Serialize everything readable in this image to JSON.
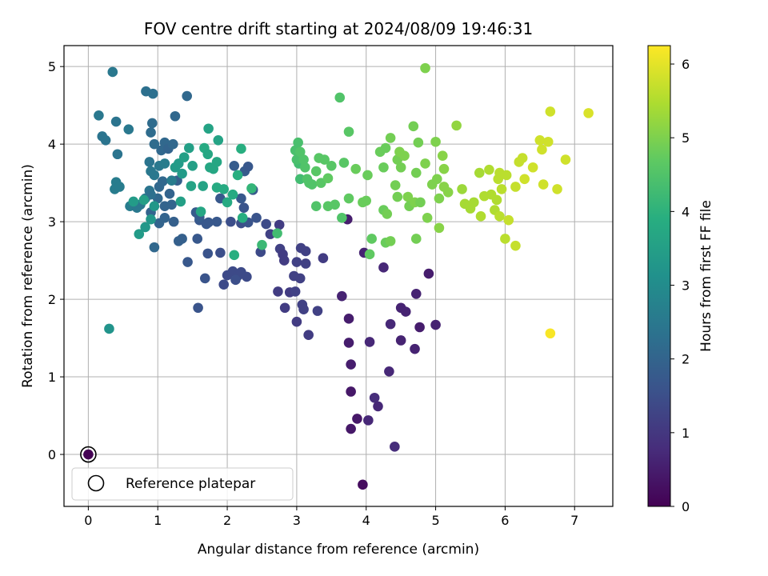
{
  "chart_data": {
    "type": "scatter",
    "title": "FOV centre drift starting at 2024/08/09 19:46:31",
    "xlabel": "Angular distance from reference (arcmin)",
    "ylabel": "Rotation from reference (arcmin)",
    "xlim": [
      -0.35,
      7.55
    ],
    "ylim": [
      -0.67,
      5.27
    ],
    "xticks": [
      "0",
      "1",
      "2",
      "3",
      "4",
      "5",
      "6",
      "7"
    ],
    "yticks": [
      "0",
      "1",
      "2",
      "3",
      "4",
      "5"
    ],
    "grid": true,
    "legend": {
      "position": "lower-left",
      "label": "Reference platepar"
    },
    "reference_point": {
      "x": 0,
      "y": 0
    },
    "colorbar": {
      "label": "Hours from first FF file",
      "range": [
        0,
        6.25
      ],
      "ticks": [
        "0",
        "1",
        "2",
        "3",
        "4",
        "5",
        "6"
      ],
      "colormap": "viridis"
    },
    "points": [
      {
        "x": 0.0,
        "y": 0.0,
        "c": 0.0
      },
      {
        "x": 3.65,
        "y": 2.04,
        "c": 0.6
      },
      {
        "x": 3.75,
        "y": 1.75,
        "c": 0.5
      },
      {
        "x": 3.75,
        "y": 1.44,
        "c": 0.5
      },
      {
        "x": 3.78,
        "y": 1.16,
        "c": 0.5
      },
      {
        "x": 3.78,
        "y": 0.81,
        "c": 0.4
      },
      {
        "x": 3.87,
        "y": 0.46,
        "c": 0.4
      },
      {
        "x": 3.78,
        "y": 0.33,
        "c": 0.4
      },
      {
        "x": 3.95,
        "y": -0.39,
        "c": 0.2
      },
      {
        "x": 4.03,
        "y": 0.44,
        "c": 0.7
      },
      {
        "x": 4.05,
        "y": 1.45,
        "c": 0.7
      },
      {
        "x": 4.12,
        "y": 0.73,
        "c": 0.8
      },
      {
        "x": 4.17,
        "y": 0.62,
        "c": 0.7
      },
      {
        "x": 4.33,
        "y": 1.07,
        "c": 0.7
      },
      {
        "x": 4.41,
        "y": 0.1,
        "c": 0.8
      },
      {
        "x": 4.35,
        "y": 1.68,
        "c": 0.7
      },
      {
        "x": 4.25,
        "y": 2.41,
        "c": 0.7
      },
      {
        "x": 3.97,
        "y": 2.6,
        "c": 0.6
      },
      {
        "x": 3.73,
        "y": 3.03,
        "c": 0.5
      },
      {
        "x": 4.5,
        "y": 1.89,
        "c": 0.6
      },
      {
        "x": 4.57,
        "y": 1.84,
        "c": 0.6
      },
      {
        "x": 4.5,
        "y": 1.47,
        "c": 0.6
      },
      {
        "x": 4.7,
        "y": 1.36,
        "c": 0.6
      },
      {
        "x": 4.72,
        "y": 2.07,
        "c": 0.6
      },
      {
        "x": 4.77,
        "y": 1.64,
        "c": 0.5
      },
      {
        "x": 4.9,
        "y": 2.33,
        "c": 0.5
      },
      {
        "x": 5.0,
        "y": 1.67,
        "c": 0.6
      },
      {
        "x": 2.75,
        "y": 2.96,
        "c": 1.1
      },
      {
        "x": 2.62,
        "y": 2.84,
        "c": 1.2
      },
      {
        "x": 2.76,
        "y": 2.65,
        "c": 1.2
      },
      {
        "x": 2.8,
        "y": 2.58,
        "c": 1.1
      },
      {
        "x": 2.82,
        "y": 2.5,
        "c": 1.1
      },
      {
        "x": 2.73,
        "y": 2.1,
        "c": 1.1
      },
      {
        "x": 2.83,
        "y": 1.89,
        "c": 1.1
      },
      {
        "x": 2.9,
        "y": 2.09,
        "c": 1.1
      },
      {
        "x": 2.96,
        "y": 2.3,
        "c": 1.2
      },
      {
        "x": 2.98,
        "y": 2.1,
        "c": 1.2
      },
      {
        "x": 3.0,
        "y": 2.48,
        "c": 1.2
      },
      {
        "x": 3.05,
        "y": 2.27,
        "c": 1.2
      },
      {
        "x": 3.0,
        "y": 1.71,
        "c": 1.1
      },
      {
        "x": 3.08,
        "y": 1.93,
        "c": 1.2
      },
      {
        "x": 3.1,
        "y": 1.87,
        "c": 1.2
      },
      {
        "x": 3.17,
        "y": 1.54,
        "c": 1.1
      },
      {
        "x": 3.06,
        "y": 2.66,
        "c": 1.2
      },
      {
        "x": 3.13,
        "y": 2.62,
        "c": 1.2
      },
      {
        "x": 3.13,
        "y": 2.46,
        "c": 1.2
      },
      {
        "x": 3.3,
        "y": 1.85,
        "c": 1.2
      },
      {
        "x": 3.38,
        "y": 2.53,
        "c": 1.1
      },
      {
        "x": 2.56,
        "y": 2.97,
        "c": 1.4
      },
      {
        "x": 2.48,
        "y": 2.61,
        "c": 1.4
      },
      {
        "x": 2.1,
        "y": 3.72,
        "c": 1.8
      },
      {
        "x": 2.25,
        "y": 3.65,
        "c": 1.8
      },
      {
        "x": 2.3,
        "y": 3.71,
        "c": 1.7
      },
      {
        "x": 2.37,
        "y": 3.41,
        "c": 1.7
      },
      {
        "x": 2.42,
        "y": 3.05,
        "c": 1.6
      },
      {
        "x": 2.2,
        "y": 3.3,
        "c": 1.7
      },
      {
        "x": 2.24,
        "y": 3.18,
        "c": 1.6
      },
      {
        "x": 2.05,
        "y": 3.0,
        "c": 1.5
      },
      {
        "x": 2.2,
        "y": 2.98,
        "c": 1.5
      },
      {
        "x": 2.3,
        "y": 2.99,
        "c": 1.6
      },
      {
        "x": 1.9,
        "y": 2.6,
        "c": 1.5
      },
      {
        "x": 2.0,
        "y": 2.31,
        "c": 1.4
      },
      {
        "x": 2.08,
        "y": 2.36,
        "c": 1.4
      },
      {
        "x": 2.15,
        "y": 2.3,
        "c": 1.4
      },
      {
        "x": 2.2,
        "y": 2.35,
        "c": 1.4
      },
      {
        "x": 2.28,
        "y": 2.29,
        "c": 1.4
      },
      {
        "x": 1.95,
        "y": 2.19,
        "c": 1.4
      },
      {
        "x": 2.12,
        "y": 2.25,
        "c": 1.5
      },
      {
        "x": 1.72,
        "y": 2.59,
        "c": 1.6
      },
      {
        "x": 1.68,
        "y": 2.27,
        "c": 1.6
      },
      {
        "x": 1.58,
        "y": 1.89,
        "c": 1.6
      },
      {
        "x": 1.57,
        "y": 2.78,
        "c": 1.7
      },
      {
        "x": 1.43,
        "y": 2.48,
        "c": 1.7
      },
      {
        "x": 1.6,
        "y": 3.02,
        "c": 1.7
      },
      {
        "x": 1.7,
        "y": 2.97,
        "c": 1.7
      },
      {
        "x": 1.73,
        "y": 2.99,
        "c": 1.7
      },
      {
        "x": 1.85,
        "y": 3.0,
        "c": 1.7
      },
      {
        "x": 1.9,
        "y": 3.3,
        "c": 1.7
      },
      {
        "x": 1.55,
        "y": 3.12,
        "c": 1.8
      },
      {
        "x": 1.6,
        "y": 3.06,
        "c": 1.8
      },
      {
        "x": 1.3,
        "y": 2.75,
        "c": 1.9
      },
      {
        "x": 1.35,
        "y": 2.78,
        "c": 1.9
      },
      {
        "x": 1.23,
        "y": 3.0,
        "c": 1.9
      },
      {
        "x": 1.28,
        "y": 3.53,
        "c": 1.9
      },
      {
        "x": 1.1,
        "y": 3.05,
        "c": 2.0
      },
      {
        "x": 1.02,
        "y": 2.98,
        "c": 2.0
      },
      {
        "x": 0.95,
        "y": 2.67,
        "c": 2.1
      },
      {
        "x": 0.9,
        "y": 3.12,
        "c": 2.0
      },
      {
        "x": 1.0,
        "y": 3.3,
        "c": 2.1
      },
      {
        "x": 1.02,
        "y": 3.45,
        "c": 2.1
      },
      {
        "x": 1.07,
        "y": 3.52,
        "c": 2.1
      },
      {
        "x": 1.1,
        "y": 3.2,
        "c": 2.0
      },
      {
        "x": 1.17,
        "y": 3.36,
        "c": 2.0
      },
      {
        "x": 1.2,
        "y": 3.22,
        "c": 2.0
      },
      {
        "x": 1.05,
        "y": 3.92,
        "c": 2.1
      },
      {
        "x": 1.1,
        "y": 4.02,
        "c": 2.1
      },
      {
        "x": 1.15,
        "y": 3.94,
        "c": 2.0
      },
      {
        "x": 1.22,
        "y": 4.0,
        "c": 2.1
      },
      {
        "x": 1.25,
        "y": 4.36,
        "c": 2.1
      },
      {
        "x": 1.42,
        "y": 4.62,
        "c": 2.1
      },
      {
        "x": 0.95,
        "y": 4.0,
        "c": 2.2
      },
      {
        "x": 0.92,
        "y": 4.27,
        "c": 2.2
      },
      {
        "x": 0.9,
        "y": 4.15,
        "c": 2.2
      },
      {
        "x": 0.93,
        "y": 4.65,
        "c": 2.3
      },
      {
        "x": 0.83,
        "y": 4.68,
        "c": 2.3
      },
      {
        "x": 0.35,
        "y": 4.93,
        "c": 2.5
      },
      {
        "x": 0.15,
        "y": 4.37,
        "c": 2.5
      },
      {
        "x": 0.4,
        "y": 4.29,
        "c": 2.4
      },
      {
        "x": 0.25,
        "y": 4.05,
        "c": 2.4
      },
      {
        "x": 0.2,
        "y": 4.1,
        "c": 2.4
      },
      {
        "x": 0.42,
        "y": 3.87,
        "c": 2.4
      },
      {
        "x": 0.58,
        "y": 4.19,
        "c": 2.5
      },
      {
        "x": 0.4,
        "y": 3.51,
        "c": 2.6
      },
      {
        "x": 0.38,
        "y": 3.42,
        "c": 2.6
      },
      {
        "x": 0.45,
        "y": 3.45,
        "c": 2.6
      },
      {
        "x": 0.6,
        "y": 3.2,
        "c": 2.6
      },
      {
        "x": 0.7,
        "y": 3.18,
        "c": 2.5
      },
      {
        "x": 0.75,
        "y": 3.22,
        "c": 2.5
      },
      {
        "x": 0.82,
        "y": 3.3,
        "c": 2.4
      },
      {
        "x": 0.88,
        "y": 3.4,
        "c": 2.4
      },
      {
        "x": 0.9,
        "y": 3.35,
        "c": 2.3
      },
      {
        "x": 0.88,
        "y": 3.77,
        "c": 2.4
      },
      {
        "x": 0.9,
        "y": 3.65,
        "c": 2.5
      },
      {
        "x": 0.95,
        "y": 3.6,
        "c": 2.5
      },
      {
        "x": 1.02,
        "y": 3.72,
        "c": 2.5
      },
      {
        "x": 1.1,
        "y": 3.75,
        "c": 2.6
      },
      {
        "x": 1.2,
        "y": 3.53,
        "c": 2.6
      },
      {
        "x": 0.3,
        "y": 1.62,
        "c": 3.2
      },
      {
        "x": 0.73,
        "y": 2.84,
        "c": 3.4
      },
      {
        "x": 0.82,
        "y": 2.93,
        "c": 3.3
      },
      {
        "x": 0.9,
        "y": 3.03,
        "c": 3.3
      },
      {
        "x": 0.95,
        "y": 3.2,
        "c": 3.3
      },
      {
        "x": 0.65,
        "y": 3.26,
        "c": 3.4
      },
      {
        "x": 0.8,
        "y": 3.28,
        "c": 3.5
      },
      {
        "x": 1.25,
        "y": 3.7,
        "c": 3.4
      },
      {
        "x": 1.3,
        "y": 3.75,
        "c": 3.4
      },
      {
        "x": 1.35,
        "y": 3.62,
        "c": 3.4
      },
      {
        "x": 1.38,
        "y": 3.83,
        "c": 3.5
      },
      {
        "x": 1.45,
        "y": 3.95,
        "c": 3.5
      },
      {
        "x": 1.5,
        "y": 3.72,
        "c": 3.5
      },
      {
        "x": 1.33,
        "y": 3.26,
        "c": 3.5
      },
      {
        "x": 1.48,
        "y": 3.46,
        "c": 3.6
      },
      {
        "x": 1.65,
        "y": 3.46,
        "c": 3.6
      },
      {
        "x": 1.62,
        "y": 3.13,
        "c": 3.7
      },
      {
        "x": 1.67,
        "y": 3.95,
        "c": 3.8
      },
      {
        "x": 1.72,
        "y": 3.87,
        "c": 3.7
      },
      {
        "x": 1.75,
        "y": 3.7,
        "c": 3.7
      },
      {
        "x": 1.8,
        "y": 3.68,
        "c": 3.7
      },
      {
        "x": 1.85,
        "y": 3.77,
        "c": 3.7
      },
      {
        "x": 1.73,
        "y": 4.2,
        "c": 3.6
      },
      {
        "x": 1.87,
        "y": 4.05,
        "c": 3.6
      },
      {
        "x": 1.85,
        "y": 3.44,
        "c": 3.8
      },
      {
        "x": 1.95,
        "y": 3.42,
        "c": 3.8
      },
      {
        "x": 2.0,
        "y": 3.25,
        "c": 3.8
      },
      {
        "x": 2.08,
        "y": 3.35,
        "c": 3.8
      },
      {
        "x": 2.15,
        "y": 3.6,
        "c": 3.9
      },
      {
        "x": 2.2,
        "y": 3.94,
        "c": 3.9
      },
      {
        "x": 2.22,
        "y": 3.05,
        "c": 3.9
      },
      {
        "x": 2.1,
        "y": 2.57,
        "c": 3.9
      },
      {
        "x": 2.35,
        "y": 3.43,
        "c": 4.1
      },
      {
        "x": 2.5,
        "y": 2.7,
        "c": 4.2
      },
      {
        "x": 2.72,
        "y": 2.85,
        "c": 4.3
      },
      {
        "x": 3.05,
        "y": 3.55,
        "c": 4.3
      },
      {
        "x": 3.03,
        "y": 3.75,
        "c": 4.3
      },
      {
        "x": 3.0,
        "y": 3.8,
        "c": 4.4
      },
      {
        "x": 2.98,
        "y": 3.92,
        "c": 4.4
      },
      {
        "x": 3.02,
        "y": 4.02,
        "c": 4.4
      },
      {
        "x": 3.05,
        "y": 3.9,
        "c": 4.5
      },
      {
        "x": 3.1,
        "y": 3.8,
        "c": 4.5
      },
      {
        "x": 3.12,
        "y": 3.7,
        "c": 4.5
      },
      {
        "x": 3.15,
        "y": 3.55,
        "c": 4.5
      },
      {
        "x": 3.18,
        "y": 3.5,
        "c": 4.5
      },
      {
        "x": 3.22,
        "y": 3.48,
        "c": 4.5
      },
      {
        "x": 3.28,
        "y": 3.65,
        "c": 4.6
      },
      {
        "x": 3.32,
        "y": 3.82,
        "c": 4.6
      },
      {
        "x": 3.35,
        "y": 3.5,
        "c": 4.6
      },
      {
        "x": 3.4,
        "y": 3.8,
        "c": 4.6
      },
      {
        "x": 3.45,
        "y": 3.56,
        "c": 4.7
      },
      {
        "x": 3.28,
        "y": 3.2,
        "c": 4.5
      },
      {
        "x": 3.45,
        "y": 3.2,
        "c": 4.6
      },
      {
        "x": 3.5,
        "y": 3.72,
        "c": 4.6
      },
      {
        "x": 3.55,
        "y": 3.22,
        "c": 4.6
      },
      {
        "x": 3.62,
        "y": 4.6,
        "c": 4.5
      },
      {
        "x": 3.65,
        "y": 3.05,
        "c": 4.5
      },
      {
        "x": 3.68,
        "y": 3.76,
        "c": 4.6
      },
      {
        "x": 3.75,
        "y": 4.16,
        "c": 4.6
      },
      {
        "x": 3.75,
        "y": 3.3,
        "c": 4.7
      },
      {
        "x": 3.85,
        "y": 3.68,
        "c": 4.8
      },
      {
        "x": 3.95,
        "y": 3.25,
        "c": 4.8
      },
      {
        "x": 4.0,
        "y": 3.27,
        "c": 4.8
      },
      {
        "x": 4.02,
        "y": 3.6,
        "c": 4.8
      },
      {
        "x": 4.05,
        "y": 2.58,
        "c": 4.7
      },
      {
        "x": 4.08,
        "y": 2.78,
        "c": 4.7
      },
      {
        "x": 4.2,
        "y": 3.9,
        "c": 4.8
      },
      {
        "x": 4.25,
        "y": 3.7,
        "c": 4.8
      },
      {
        "x": 4.28,
        "y": 3.95,
        "c": 4.8
      },
      {
        "x": 4.25,
        "y": 3.15,
        "c": 4.8
      },
      {
        "x": 4.3,
        "y": 3.1,
        "c": 4.9
      },
      {
        "x": 4.28,
        "y": 2.73,
        "c": 4.8
      },
      {
        "x": 4.35,
        "y": 2.75,
        "c": 4.9
      },
      {
        "x": 4.35,
        "y": 4.08,
        "c": 4.9
      },
      {
        "x": 4.42,
        "y": 3.47,
        "c": 4.9
      },
      {
        "x": 4.45,
        "y": 3.32,
        "c": 4.9
      },
      {
        "x": 4.45,
        "y": 3.8,
        "c": 4.9
      },
      {
        "x": 4.48,
        "y": 3.9,
        "c": 5.0
      },
      {
        "x": 4.5,
        "y": 3.7,
        "c": 4.9
      },
      {
        "x": 4.55,
        "y": 3.85,
        "c": 5.0
      },
      {
        "x": 4.6,
        "y": 3.32,
        "c": 5.0
      },
      {
        "x": 4.62,
        "y": 3.2,
        "c": 4.9
      },
      {
        "x": 4.68,
        "y": 4.23,
        "c": 4.9
      },
      {
        "x": 4.7,
        "y": 3.25,
        "c": 5.0
      },
      {
        "x": 4.72,
        "y": 3.63,
        "c": 4.9
      },
      {
        "x": 4.75,
        "y": 4.02,
        "c": 4.9
      },
      {
        "x": 4.78,
        "y": 3.25,
        "c": 4.9
      },
      {
        "x": 4.72,
        "y": 2.78,
        "c": 4.9
      },
      {
        "x": 4.85,
        "y": 4.98,
        "c": 5.0
      },
      {
        "x": 4.85,
        "y": 3.75,
        "c": 5.0
      },
      {
        "x": 4.88,
        "y": 3.05,
        "c": 5.0
      },
      {
        "x": 4.95,
        "y": 3.48,
        "c": 5.0
      },
      {
        "x": 5.0,
        "y": 4.03,
        "c": 5.0
      },
      {
        "x": 5.02,
        "y": 3.55,
        "c": 5.0
      },
      {
        "x": 5.05,
        "y": 3.3,
        "c": 5.0
      },
      {
        "x": 5.05,
        "y": 2.92,
        "c": 5.1
      },
      {
        "x": 5.1,
        "y": 3.85,
        "c": 5.1
      },
      {
        "x": 5.12,
        "y": 3.68,
        "c": 5.1
      },
      {
        "x": 5.12,
        "y": 3.45,
        "c": 5.1
      },
      {
        "x": 5.18,
        "y": 3.38,
        "c": 5.1
      },
      {
        "x": 5.3,
        "y": 4.24,
        "c": 5.2
      },
      {
        "x": 5.38,
        "y": 3.42,
        "c": 5.3
      },
      {
        "x": 5.42,
        "y": 3.23,
        "c": 5.4
      },
      {
        "x": 5.5,
        "y": 3.17,
        "c": 5.4
      },
      {
        "x": 5.55,
        "y": 3.25,
        "c": 5.4
      },
      {
        "x": 5.63,
        "y": 3.63,
        "c": 5.4
      },
      {
        "x": 5.65,
        "y": 3.07,
        "c": 5.5
      },
      {
        "x": 5.7,
        "y": 3.33,
        "c": 5.5
      },
      {
        "x": 5.77,
        "y": 3.67,
        "c": 5.5
      },
      {
        "x": 5.8,
        "y": 3.35,
        "c": 5.5
      },
      {
        "x": 5.85,
        "y": 3.15,
        "c": 5.5
      },
      {
        "x": 5.88,
        "y": 3.28,
        "c": 5.5
      },
      {
        "x": 5.9,
        "y": 3.55,
        "c": 5.6
      },
      {
        "x": 5.92,
        "y": 3.63,
        "c": 5.6
      },
      {
        "x": 5.92,
        "y": 3.07,
        "c": 5.6
      },
      {
        "x": 5.95,
        "y": 3.42,
        "c": 5.6
      },
      {
        "x": 6.0,
        "y": 2.78,
        "c": 5.6
      },
      {
        "x": 6.02,
        "y": 3.6,
        "c": 5.6
      },
      {
        "x": 6.05,
        "y": 3.02,
        "c": 5.7
      },
      {
        "x": 6.15,
        "y": 3.45,
        "c": 5.7
      },
      {
        "x": 6.15,
        "y": 2.69,
        "c": 5.7
      },
      {
        "x": 6.2,
        "y": 3.77,
        "c": 5.7
      },
      {
        "x": 6.25,
        "y": 3.82,
        "c": 5.7
      },
      {
        "x": 6.28,
        "y": 3.55,
        "c": 5.8
      },
      {
        "x": 6.4,
        "y": 3.7,
        "c": 5.8
      },
      {
        "x": 6.5,
        "y": 4.05,
        "c": 5.8
      },
      {
        "x": 6.53,
        "y": 3.93,
        "c": 5.8
      },
      {
        "x": 6.55,
        "y": 3.48,
        "c": 5.8
      },
      {
        "x": 6.62,
        "y": 4.03,
        "c": 5.8
      },
      {
        "x": 6.65,
        "y": 4.42,
        "c": 5.8
      },
      {
        "x": 6.75,
        "y": 3.42,
        "c": 5.8
      },
      {
        "x": 6.87,
        "y": 3.8,
        "c": 5.8
      },
      {
        "x": 7.2,
        "y": 4.4,
        "c": 5.9
      },
      {
        "x": 6.65,
        "y": 1.56,
        "c": 6.2
      }
    ]
  }
}
